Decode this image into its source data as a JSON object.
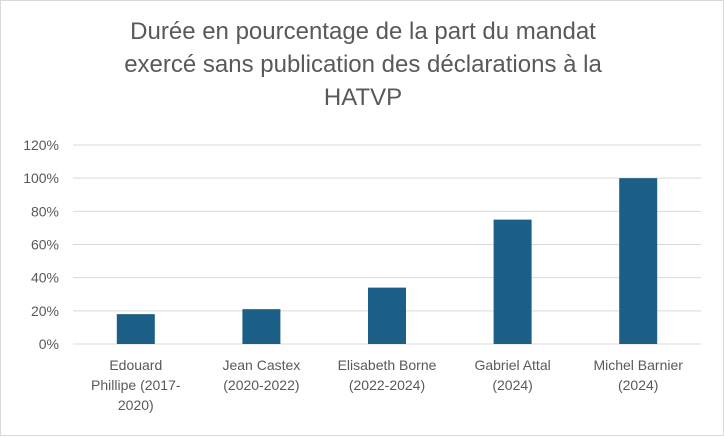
{
  "chart_data": {
    "type": "bar",
    "title_lines": [
      "Durée en pourcentage de la part du mandat",
      "exercé sans publication des déclarations à la",
      "HATVP"
    ],
    "categories": [
      [
        "Edouard",
        "Phillipe (2017-",
        "2020)"
      ],
      [
        "Jean Castex",
        "(2020-2022)"
      ],
      [
        "Elisabeth Borne",
        "(2022-2024)"
      ],
      [
        "Gabriel Attal",
        "(2024)"
      ],
      [
        "Michel Barnier",
        "(2024)"
      ]
    ],
    "values": [
      0.18,
      0.21,
      0.34,
      0.75,
      1.0
    ],
    "yticks": [
      "0%",
      "20%",
      "40%",
      "60%",
      "80%",
      "100%",
      "120%"
    ],
    "ylim": [
      0,
      1.2
    ],
    "grid": true,
    "legend": "none",
    "bar_color": "#1b5e86",
    "grid_color": "#d9d9d9"
  }
}
